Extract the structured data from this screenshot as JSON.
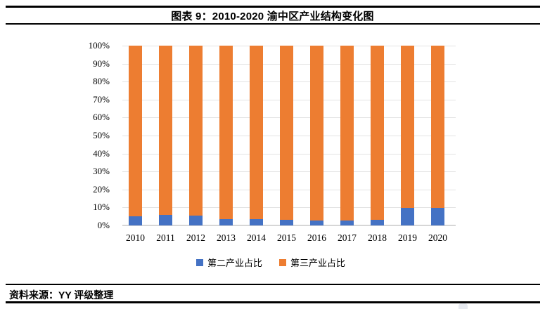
{
  "header": {
    "title": "图表 9：2010-2020 渝中区产业结构变化图"
  },
  "footer": {
    "source": "资料来源：YY 评级整理"
  },
  "colors": {
    "secondary_industry_blue": "#4472C4",
    "tertiary_industry_orange": "#ED7D31",
    "rule_black": "#000000",
    "gridline_gray": "#E3E3E3"
  },
  "chart_data": {
    "type": "bar",
    "subtype": "stacked-100-percent",
    "title": "2010-2020 渝中区产业结构变化图",
    "categories": [
      "2010",
      "2011",
      "2012",
      "2013",
      "2014",
      "2015",
      "2016",
      "2017",
      "2018",
      "2019",
      "2020"
    ],
    "series": [
      {
        "name": "第二产业占比",
        "color": "#4472C4",
        "values": [
          5.2,
          5.8,
          5.3,
          3.7,
          3.6,
          3.0,
          2.8,
          2.8,
          3.2,
          9.6,
          9.8
        ]
      },
      {
        "name": "第三产业占比",
        "color": "#ED7D31",
        "values": [
          94.8,
          94.2,
          94.7,
          96.3,
          96.4,
          97.0,
          97.2,
          97.2,
          96.8,
          90.4,
          90.2
        ]
      }
    ],
    "xlabel": "",
    "ylabel": "",
    "ylim": [
      0,
      100
    ],
    "y_ticks": [
      "0%",
      "10%",
      "20%",
      "30%",
      "40%",
      "50%",
      "60%",
      "70%",
      "80%",
      "90%",
      "100%"
    ],
    "grid": true,
    "legend_position": "bottom"
  }
}
